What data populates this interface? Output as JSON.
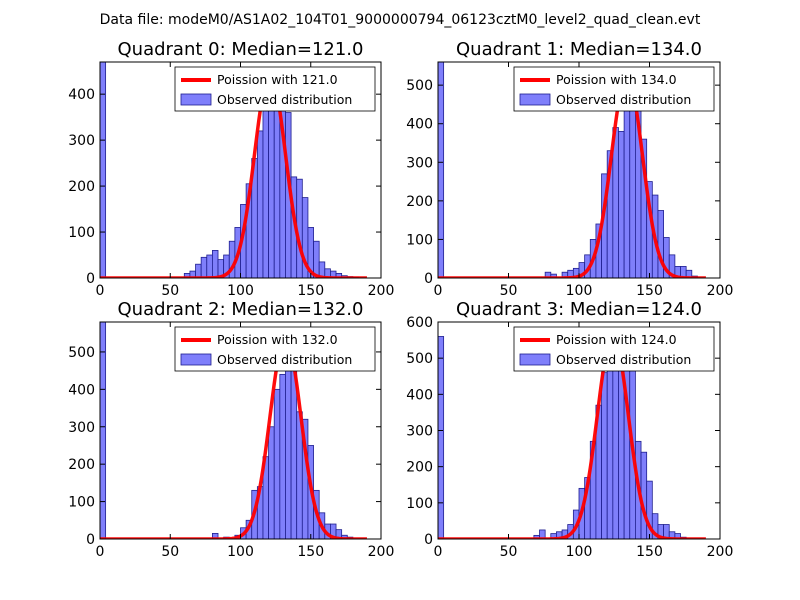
{
  "suptitle": "Data file: modeM0/AS1A02_104T01_9000000794_06123cztM0_level2_quad_clean.evt",
  "colors": {
    "bar_fill": "#7f7ffb",
    "bar_edge": "#1f1f8f",
    "curve": "#ff0000",
    "axes": "#000000"
  },
  "chart_data": [
    {
      "type": "bar",
      "title": "Quadrant 0: Median=121.0",
      "median": 121.0,
      "xlim": [
        0,
        200
      ],
      "ylim": [
        0,
        470
      ],
      "xticks": [
        0,
        50,
        100,
        150,
        200
      ],
      "yticks": [
        0,
        100,
        200,
        300,
        400
      ],
      "bin_width": 4,
      "legend": {
        "curve_label": "Poission with 121.0",
        "bars_label": "Observed distribution",
        "position": "upper right"
      },
      "bar_x": [
        0,
        60,
        64,
        68,
        72,
        76,
        80,
        84,
        88,
        92,
        96,
        100,
        104,
        108,
        112,
        116,
        120,
        124,
        128,
        132,
        136,
        140,
        144,
        148,
        152,
        156,
        160,
        164,
        168,
        172,
        176,
        180
      ],
      "bar_h": [
        470,
        10,
        15,
        30,
        45,
        50,
        60,
        40,
        50,
        80,
        110,
        160,
        205,
        260,
        320,
        400,
        450,
        440,
        410,
        360,
        220,
        215,
        175,
        110,
        80,
        35,
        20,
        15,
        10,
        5,
        3,
        2
      ],
      "curve": {
        "mean": 121.0,
        "sd": 11.0,
        "peak": 445
      }
    },
    {
      "type": "bar",
      "title": "Quadrant 1: Median=134.0",
      "median": 134.0,
      "xlim": [
        0,
        200
      ],
      "ylim": [
        0,
        560
      ],
      "xticks": [
        0,
        50,
        100,
        150,
        200
      ],
      "yticks": [
        0,
        100,
        200,
        300,
        400,
        500
      ],
      "bin_width": 4,
      "legend": {
        "curve_label": "Poission with 134.0",
        "bars_label": "Observed distribution",
        "position": "upper right"
      },
      "bar_x": [
        0,
        76,
        80,
        88,
        92,
        96,
        100,
        104,
        108,
        112,
        116,
        120,
        124,
        128,
        132,
        136,
        140,
        144,
        148,
        152,
        156,
        160,
        164,
        168,
        172,
        176,
        180
      ],
      "bar_h": [
        560,
        15,
        10,
        15,
        20,
        25,
        40,
        60,
        100,
        140,
        270,
        330,
        390,
        380,
        520,
        530,
        490,
        360,
        250,
        215,
        175,
        105,
        60,
        30,
        30,
        20,
        5
      ],
      "curve": {
        "mean": 134.0,
        "sd": 11.0,
        "peak": 525
      }
    },
    {
      "type": "bar",
      "title": "Quadrant 2: Median=132.0",
      "median": 132.0,
      "xlim": [
        0,
        200
      ],
      "ylim": [
        0,
        580
      ],
      "xticks": [
        0,
        50,
        100,
        150,
        200
      ],
      "yticks": [
        0,
        100,
        200,
        300,
        400,
        500
      ],
      "bin_width": 4,
      "legend": {
        "curve_label": "Poission with 132.0",
        "bars_label": "Observed distribution",
        "position": "upper right"
      },
      "bar_x": [
        0,
        80,
        88,
        96,
        100,
        104,
        108,
        112,
        116,
        120,
        124,
        128,
        132,
        136,
        140,
        144,
        148,
        152,
        156,
        160,
        164,
        168,
        172,
        176
      ],
      "bar_h": [
        580,
        15,
        5,
        10,
        30,
        50,
        130,
        140,
        220,
        300,
        400,
        440,
        530,
        540,
        340,
        320,
        250,
        130,
        70,
        40,
        40,
        25,
        10,
        5
      ],
      "curve": {
        "mean": 132.0,
        "sd": 11.0,
        "peak": 540
      }
    },
    {
      "type": "bar",
      "title": "Quadrant 3: Median=124.0",
      "median": 124.0,
      "xlim": [
        0,
        200
      ],
      "ylim": [
        0,
        600
      ],
      "xticks": [
        0,
        50,
        100,
        150,
        200
      ],
      "yticks": [
        0,
        100,
        200,
        300,
        400,
        500,
        600
      ],
      "bin_width": 4,
      "legend": {
        "curve_label": "Poission with 124.0",
        "bars_label": "Observed distribution",
        "position": "upper right"
      },
      "bar_x": [
        0,
        68,
        72,
        80,
        84,
        88,
        92,
        96,
        100,
        104,
        108,
        112,
        116,
        120,
        124,
        128,
        132,
        136,
        140,
        144,
        148,
        152,
        156,
        160,
        164,
        168,
        172
      ],
      "bar_h": [
        560,
        10,
        25,
        15,
        20,
        25,
        40,
        80,
        140,
        170,
        270,
        370,
        460,
        550,
        560,
        510,
        500,
        470,
        270,
        240,
        160,
        70,
        40,
        40,
        20,
        15,
        5
      ],
      "curve": {
        "mean": 124.0,
        "sd": 11.0,
        "peak": 565
      }
    }
  ]
}
